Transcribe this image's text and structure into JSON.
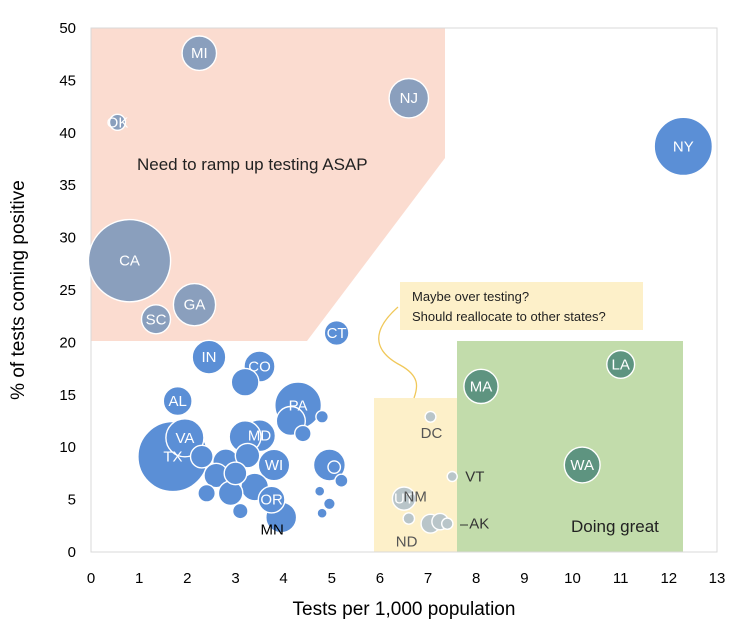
{
  "chart_data": {
    "type": "scatter",
    "title": "",
    "xlabel": "Tests per 1,000 population",
    "ylabel": "% of tests coming positive",
    "xlim": [
      0,
      13
    ],
    "ylim": [
      0,
      50
    ],
    "x_ticks": [
      "0",
      "1",
      "2",
      "3",
      "4",
      "5",
      "6",
      "7",
      "8",
      "9",
      "10",
      "11",
      "12",
      "13"
    ],
    "y_ticks": [
      "0",
      "5",
      "10",
      "15",
      "20",
      "25",
      "30",
      "35",
      "40",
      "45",
      "50"
    ],
    "grid": false,
    "legend": "none",
    "colors": {
      "bubble": "#5b8fd6",
      "bubble_in_red_zone": "#8a9fbd",
      "bubble_in_green_zone": "#5e9480",
      "bubble_in_yellow_zone": "#b9c5c9",
      "red_zone": "#fbdcd0",
      "green_zone": "#c2dcab",
      "yellow_zone": "#fdf0c9",
      "callout_border": "#f0c85a"
    },
    "zones": [
      {
        "name": "red",
        "label": "Need to ramp up testing ASAP"
      },
      {
        "name": "yellow",
        "label": "Maybe over testing?\nShould reallocate to other states?"
      },
      {
        "name": "green",
        "label": "Doing great"
      }
    ],
    "points": [
      {
        "label": "MI",
        "x": 2.25,
        "y": 47.6,
        "size": 7.0
      },
      {
        "label": "OK",
        "x": 0.55,
        "y": 41.0,
        "size": 1.5
      },
      {
        "label": "NJ",
        "x": 6.6,
        "y": 43.3,
        "size": 9.2
      },
      {
        "label": "NY",
        "x": 12.3,
        "y": 38.7,
        "size": 20.0
      },
      {
        "label": "CA",
        "x": 0.8,
        "y": 27.8,
        "size": 40.0
      },
      {
        "label": "GA",
        "x": 2.15,
        "y": 23.6,
        "size": 10.5
      },
      {
        "label": "SC",
        "x": 1.35,
        "y": 22.2,
        "size": 5.0
      },
      {
        "label": "IN",
        "x": 2.45,
        "y": 18.6,
        "size": 6.7
      },
      {
        "label": "CO",
        "x": 3.5,
        "y": 17.7,
        "size": 5.7
      },
      {
        "label": "CT",
        "x": 5.1,
        "y": 20.9,
        "size": 3.6
      },
      {
        "label": "AL",
        "x": 1.8,
        "y": 14.4,
        "size": 4.9
      },
      {
        "label": "PA",
        "x": 4.3,
        "y": 14.0,
        "size": 12.8
      },
      {
        "label": "MD",
        "x": 3.5,
        "y": 11.1,
        "size": 6.0
      },
      {
        "label": "VA",
        "x": 1.95,
        "y": 10.9,
        "size": 8.5
      },
      {
        "label": "TX",
        "x": 1.7,
        "y": 9.1,
        "size": 29.0
      },
      {
        "label": "WI",
        "x": 3.8,
        "y": 8.3,
        "size": 5.8
      },
      {
        "label": "OR",
        "x": 3.75,
        "y": 5.0,
        "size": 4.2
      },
      {
        "label": "MN",
        "x": 3.95,
        "y": 3.3,
        "size": 5.6
      },
      {
        "label": "DC",
        "x": 7.05,
        "y": 12.9,
        "size": 0.7
      },
      {
        "label": "MA",
        "x": 8.1,
        "y": 15.8,
        "size": 6.9
      },
      {
        "label": "LA",
        "x": 11.0,
        "y": 17.9,
        "size": 4.6
      },
      {
        "label": "WA",
        "x": 10.2,
        "y": 8.3,
        "size": 7.6
      },
      {
        "label": "VT",
        "x": 7.5,
        "y": 7.2,
        "size": 0.6
      },
      {
        "label": "UT",
        "x": 6.5,
        "y": 5.1,
        "size": 3.2
      },
      {
        "label": "NM",
        "x": 7.05,
        "y": 2.7,
        "size": 2.1
      },
      {
        "label": "ND",
        "x": 6.6,
        "y": 3.2,
        "size": 0.76
      },
      {
        "label": "AK",
        "x": 7.4,
        "y": 2.7,
        "size": 0.73
      },
      {
        "label": "",
        "x": 3.2,
        "y": 16.2,
        "size": 4.5
      },
      {
        "label": "",
        "x": 4.15,
        "y": 12.5,
        "size": 5.0
      },
      {
        "label": "",
        "x": 3.2,
        "y": 11.0,
        "size": 6.0
      },
      {
        "label": "",
        "x": 4.4,
        "y": 11.3,
        "size": 1.6
      },
      {
        "label": "",
        "x": 4.8,
        "y": 12.9,
        "size": 0.9
      },
      {
        "label": "",
        "x": 2.3,
        "y": 9.1,
        "size": 3.0
      },
      {
        "label": "",
        "x": 2.8,
        "y": 8.6,
        "size": 4.0
      },
      {
        "label": "",
        "x": 2.6,
        "y": 7.3,
        "size": 3.5
      },
      {
        "label": "",
        "x": 3.0,
        "y": 7.5,
        "size": 3.0
      },
      {
        "label": "",
        "x": 3.25,
        "y": 9.2,
        "size": 3.5
      },
      {
        "label": "",
        "x": 2.9,
        "y": 5.6,
        "size": 3.5
      },
      {
        "label": "",
        "x": 3.4,
        "y": 6.2,
        "size": 4.5
      },
      {
        "label": "",
        "x": 2.4,
        "y": 5.6,
        "size": 1.8
      },
      {
        "label": "",
        "x": 3.1,
        "y": 3.9,
        "size": 1.4
      },
      {
        "label": "",
        "x": 4.95,
        "y": 8.3,
        "size": 6.0
      },
      {
        "label": "",
        "x": 5.05,
        "y": 8.1,
        "size": 0.9
      },
      {
        "label": "",
        "x": 5.2,
        "y": 6.8,
        "size": 1.0
      },
      {
        "label": "",
        "x": 4.75,
        "y": 5.8,
        "size": 0.6
      },
      {
        "label": "",
        "x": 4.95,
        "y": 4.6,
        "size": 0.8
      },
      {
        "label": "",
        "x": 4.8,
        "y": 3.7,
        "size": 0.6
      },
      {
        "label": "",
        "x": 7.25,
        "y": 2.9,
        "size": 1.6
      }
    ]
  }
}
